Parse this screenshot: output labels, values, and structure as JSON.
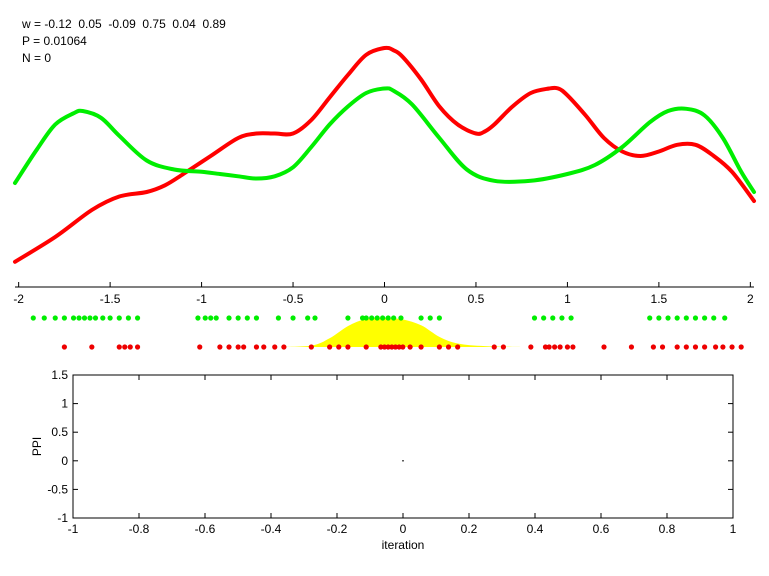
{
  "info": {
    "weights": "w = -0.12  0.05  -0.09  0.75  0.04  0.89",
    "probability": "P = 0.01064",
    "count": "N = 0"
  },
  "chart_data": [
    {
      "type": "line",
      "title": "",
      "xlabel": "",
      "ylabel": "",
      "xlim": [
        -2.02,
        2.02
      ],
      "xticks": [
        "-2",
        "-1.5",
        "-1",
        "-0.5",
        "0",
        "0.5",
        "1",
        "1.5",
        "2"
      ],
      "series": [
        {
          "color": "#ff0000",
          "x": [
            -2.02,
            -1.8,
            -1.6,
            -1.45,
            -1.3,
            -1.2,
            -1.1,
            -0.95,
            -0.8,
            -0.7,
            -0.6,
            -0.5,
            -0.4,
            -0.3,
            -0.2,
            -0.1,
            0.0,
            0.05,
            0.1,
            0.2,
            0.3,
            0.4,
            0.5,
            0.55,
            0.6,
            0.7,
            0.8,
            0.9,
            0.95,
            1.0,
            1.1,
            1.2,
            1.3,
            1.4,
            1.5,
            1.6,
            1.7,
            1.8,
            1.9,
            2.02
          ],
          "y": [
            0.05,
            0.16,
            0.28,
            0.34,
            0.36,
            0.39,
            0.44,
            0.52,
            0.6,
            0.62,
            0.62,
            0.62,
            0.68,
            0.78,
            0.88,
            0.97,
            1.0,
            0.99,
            0.96,
            0.86,
            0.74,
            0.66,
            0.62,
            0.63,
            0.66,
            0.74,
            0.8,
            0.82,
            0.82,
            0.79,
            0.7,
            0.6,
            0.54,
            0.52,
            0.54,
            0.57,
            0.57,
            0.52,
            0.45,
            0.32
          ]
        },
        {
          "color": "#00ee00",
          "x": [
            -2.02,
            -1.9,
            -1.8,
            -1.7,
            -1.65,
            -1.55,
            -1.45,
            -1.3,
            -1.15,
            -1.0,
            -0.9,
            -0.8,
            -0.7,
            -0.6,
            -0.5,
            -0.4,
            -0.3,
            -0.2,
            -0.1,
            0.0,
            0.05,
            0.15,
            0.3,
            0.45,
            0.6,
            0.8,
            1.0,
            1.15,
            1.3,
            1.45,
            1.55,
            1.65,
            1.75,
            1.85,
            1.95,
            2.02
          ],
          "y": [
            0.4,
            0.55,
            0.66,
            0.71,
            0.72,
            0.69,
            0.61,
            0.5,
            0.46,
            0.45,
            0.44,
            0.43,
            0.42,
            0.43,
            0.47,
            0.56,
            0.66,
            0.74,
            0.8,
            0.82,
            0.81,
            0.75,
            0.6,
            0.46,
            0.41,
            0.41,
            0.44,
            0.48,
            0.56,
            0.67,
            0.72,
            0.73,
            0.7,
            0.6,
            0.45,
            0.36
          ]
        }
      ],
      "points": {
        "green_x": [
          -1.92,
          -1.86,
          -1.8,
          -1.75,
          -1.7,
          -1.67,
          -1.64,
          -1.61,
          -1.58,
          -1.54,
          -1.5,
          -1.45,
          -1.4,
          -1.35,
          -1.02,
          -0.98,
          -0.95,
          -0.92,
          -0.85,
          -0.8,
          -0.75,
          -0.7,
          -0.58,
          -0.5,
          -0.42,
          -0.38,
          -0.2,
          -0.12,
          -0.1,
          -0.07,
          -0.04,
          -0.01,
          0.02,
          0.05,
          0.09,
          0.2,
          0.25,
          0.3,
          0.82,
          0.87,
          0.92,
          0.97,
          1.02,
          1.45,
          1.5,
          1.55,
          1.6,
          1.65,
          1.7,
          1.75,
          1.8,
          1.86
        ],
        "red_x": [
          -1.75,
          -1.6,
          -1.45,
          -1.42,
          -1.39,
          -1.35,
          -1.01,
          -0.9,
          -0.85,
          -0.8,
          -0.77,
          -0.7,
          -0.66,
          -0.6,
          -0.55,
          -0.4,
          -0.3,
          -0.25,
          -0.2,
          -0.1,
          -0.02,
          0.0,
          0.02,
          0.04,
          0.06,
          0.08,
          0.1,
          0.14,
          0.2,
          0.3,
          0.35,
          0.4,
          0.6,
          0.65,
          0.8,
          0.88,
          0.9,
          0.93,
          0.96,
          1.0,
          1.03,
          1.2,
          1.35,
          1.47,
          1.52,
          1.6,
          1.65,
          1.7,
          1.75,
          1.81,
          1.85,
          1.9,
          1.95
        ]
      },
      "density": {
        "color": "#ffff00",
        "x": [
          -0.6,
          -0.4,
          -0.3,
          -0.2,
          -0.1,
          0.0,
          0.1,
          0.2,
          0.3,
          0.4,
          0.55,
          0.75
        ],
        "y": [
          0,
          0.05,
          0.3,
          0.72,
          0.97,
          1.0,
          0.95,
          0.75,
          0.35,
          0.12,
          0.03,
          0
        ]
      }
    },
    {
      "type": "line",
      "title": "",
      "xlabel": "iteration",
      "ylabel": "PPI",
      "xlim": [
        -1,
        1
      ],
      "ylim": [
        -1,
        1.5
      ],
      "xticks": [
        "-1",
        "-0.8",
        "-0.6",
        "-0.4",
        "-0.2",
        "0",
        "0.2",
        "0.4",
        "0.6",
        "0.8",
        "1"
      ],
      "yticks": [
        "-1",
        "-0.5",
        "0",
        "0.5",
        "1",
        "1.5"
      ],
      "series": [
        {
          "x": [
            0
          ],
          "y": [
            0
          ]
        }
      ]
    }
  ]
}
